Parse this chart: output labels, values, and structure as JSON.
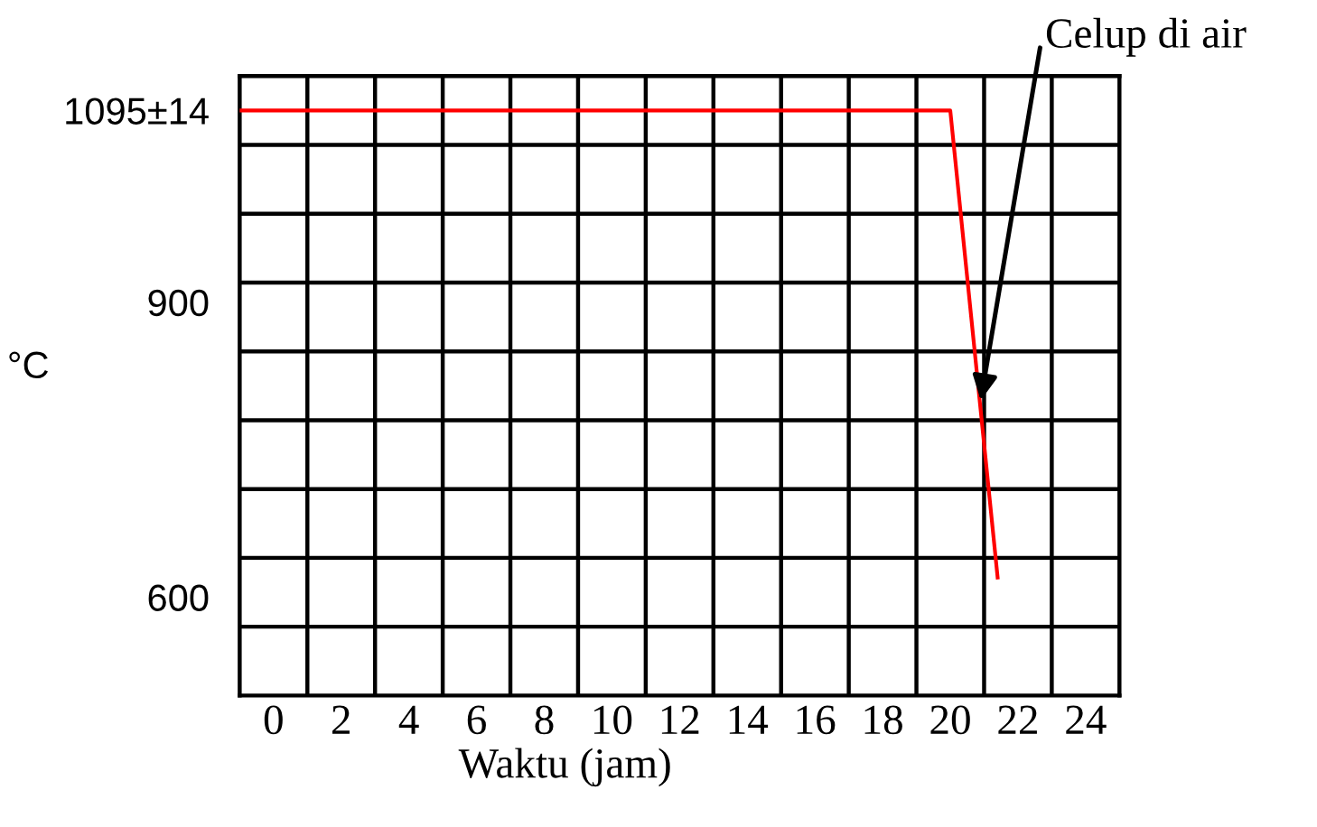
{
  "chart_data": {
    "type": "line",
    "xlabel": "Waktu (jam)",
    "ylabel": "°C",
    "series": [
      {
        "color": "#ff0000",
        "x": [
          -1,
          20,
          21.4
        ],
        "values": [
          1095,
          1095,
          620
        ]
      }
    ],
    "xlim": [
      -1,
      25
    ],
    "xticks": [
      0,
      2,
      4,
      6,
      8,
      10,
      12,
      14,
      16,
      18,
      20,
      22,
      24,
      {
        "value": 1,
        "label": null
      },
      {
        "value": 3,
        "label": null
      },
      {
        "value": 5,
        "label": null
      },
      {
        "value": 7,
        "label": null
      },
      {
        "value": 9,
        "label": null
      },
      {
        "value": 11,
        "label": null
      },
      {
        "value": 13,
        "label": null
      },
      {
        "value": 15,
        "label": null
      },
      {
        "value": 17,
        "label": null
      },
      {
        "value": 19,
        "label": null
      },
      {
        "value": 21,
        "label": null
      },
      {
        "value": 23,
        "label": null
      }
    ],
    "ylim": [
      500,
      1130
    ],
    "yticks": [
      600,
      900,
      {
        "value": 1095,
        "label": "1095±14"
      },
      {
        "value": 570,
        "label": null
      },
      {
        "value": 640,
        "label": null
      },
      {
        "value": 710,
        "label": null
      },
      {
        "value": 780,
        "label": null
      },
      {
        "value": 850,
        "label": null
      },
      {
        "value": 920,
        "label": null
      },
      {
        "value": 990,
        "label": null
      },
      {
        "value": 1060,
        "label": null
      }
    ],
    "grid": true,
    "marker": "none",
    "line_style": "solid",
    "legend": false,
    "annotations": [
      {
        "text": "Celup di air",
        "x": 20.9,
        "y": 800
      }
    ]
  }
}
